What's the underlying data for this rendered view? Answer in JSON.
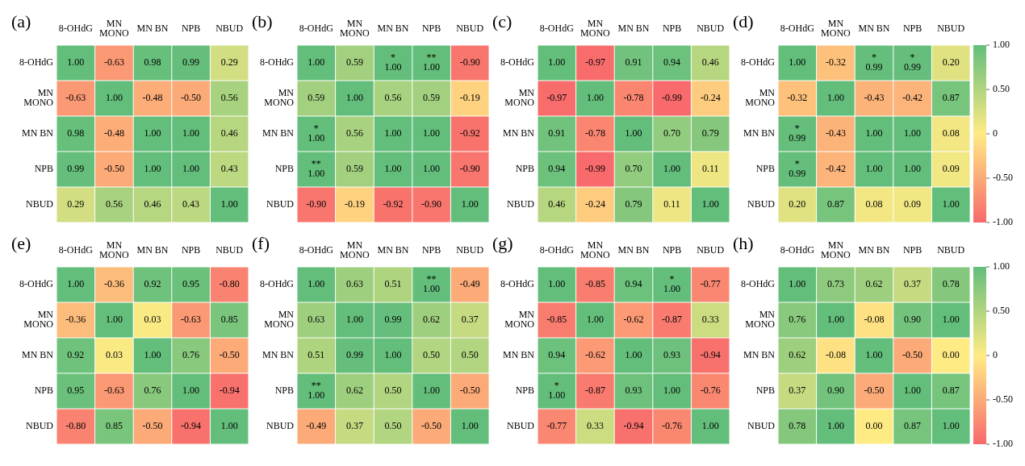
{
  "chart_data": [
    {
      "type": "heatmap",
      "title": "(a)",
      "categories": [
        "8-OHdG",
        "MN\nMONO",
        "MN BN",
        "NPB",
        "NBUD"
      ],
      "y_categories": [
        "8-OHdG",
        "MN\nMONO",
        "MN BN",
        "NPB",
        "NBUD"
      ],
      "cells": [
        [
          1.0,
          -0.63,
          0.98,
          0.99,
          0.29
        ],
        [
          -0.63,
          1.0,
          -0.48,
          -0.5,
          0.56
        ],
        [
          0.98,
          -0.48,
          1.0,
          1.0,
          0.46
        ],
        [
          0.99,
          -0.5,
          1.0,
          1.0,
          0.43
        ],
        [
          0.29,
          0.56,
          0.46,
          0.43,
          1.0
        ]
      ],
      "cell_labels": [
        [
          "1.00",
          "-0.63",
          "0.98",
          "0.99",
          "0.29"
        ],
        [
          "-0.63",
          "1.00",
          "-0.48",
          "-0.50",
          "0.56"
        ],
        [
          "0.98",
          "-0.48",
          "1.00",
          "1.00",
          "0.46"
        ],
        [
          "0.99",
          "-0.50",
          "1.00",
          "1.00",
          "0.43"
        ],
        [
          "0.29",
          "0.56",
          "0.46",
          "0.43",
          "1.00"
        ]
      ]
    },
    {
      "type": "heatmap",
      "title": "(b)",
      "categories": [
        "8-OHdG",
        "MN\nMONO",
        "MN BN",
        "NPB",
        "NBUD"
      ],
      "y_categories": [
        "8-OHdG",
        "MN\nMONO",
        "MN BN",
        "NPB",
        "NBUD"
      ],
      "cells": [
        [
          1.0,
          0.59,
          1.0,
          1.0,
          -0.9
        ],
        [
          0.59,
          1.0,
          0.56,
          0.59,
          -0.19
        ],
        [
          1.0,
          0.56,
          1.0,
          1.0,
          -0.92
        ],
        [
          1.0,
          0.59,
          1.0,
          1.0,
          -0.9
        ],
        [
          -0.9,
          -0.19,
          -0.92,
          -0.9,
          1.0
        ]
      ],
      "cell_labels": [
        [
          "1.00",
          "0.59",
          "*\n1.00",
          "**\n1.00",
          "-0.90"
        ],
        [
          "0.59",
          "1.00",
          "0.56",
          "0.59",
          "-0.19"
        ],
        [
          "*\n1.00",
          "0.56",
          "1.00",
          "1.00",
          "-0.92"
        ],
        [
          "**\n1.00",
          "0.59",
          "1.00",
          "1.00",
          "-0.90"
        ],
        [
          "-0.90",
          "-0.19",
          "-0.92",
          "-0.90",
          "1.00"
        ]
      ]
    },
    {
      "type": "heatmap",
      "title": "(c)",
      "categories": [
        "8-OHdG",
        "MN\nMONO",
        "MN BN",
        "NPB",
        "NBUD"
      ],
      "y_categories": [
        "8-OHdG",
        "MN\nMONO",
        "MN BN",
        "NPB",
        "NBUD"
      ],
      "cells": [
        [
          1.0,
          -0.97,
          0.91,
          0.94,
          0.46
        ],
        [
          -0.97,
          1.0,
          -0.78,
          -0.99,
          -0.24
        ],
        [
          0.91,
          -0.78,
          1.0,
          0.7,
          0.79
        ],
        [
          0.94,
          -0.99,
          0.7,
          1.0,
          0.11
        ],
        [
          0.46,
          -0.24,
          0.79,
          0.11,
          1.0
        ]
      ],
      "cell_labels": [
        [
          "1.00",
          "-0.97",
          "0.91",
          "0.94",
          "0.46"
        ],
        [
          "-0.97",
          "1.00",
          "-0.78",
          "-0.99",
          "-0.24"
        ],
        [
          "0.91",
          "-0.78",
          "1.00",
          "0.70",
          "0.79"
        ],
        [
          "0.94",
          "-0.99",
          "0.70",
          "1.00",
          "0.11"
        ],
        [
          "0.46",
          "-0.24",
          "0.79",
          "0.11",
          "1.00"
        ]
      ]
    },
    {
      "type": "heatmap",
      "title": "(d)",
      "categories": [
        "8-OHdG",
        "MN\nMONO",
        "MN BN",
        "NPB",
        "NBUD"
      ],
      "y_categories": [
        "8-OHdG",
        "MN\nMONO",
        "MN BN",
        "NPB",
        "NBUD"
      ],
      "cells": [
        [
          1.0,
          -0.32,
          0.99,
          0.99,
          0.2
        ],
        [
          -0.32,
          1.0,
          -0.43,
          -0.42,
          0.87
        ],
        [
          0.99,
          -0.43,
          1.0,
          1.0,
          0.08
        ],
        [
          0.99,
          -0.42,
          1.0,
          1.0,
          0.09
        ],
        [
          0.2,
          0.87,
          0.08,
          0.09,
          1.0
        ]
      ],
      "cell_labels": [
        [
          "1.00",
          "-0.32",
          "*\n0.99",
          "*\n0.99",
          "0.20"
        ],
        [
          "-0.32",
          "1.00",
          "-0.43",
          "-0.42",
          "0.87"
        ],
        [
          "*\n0.99",
          "-0.43",
          "1.00",
          "1.00",
          "0.08"
        ],
        [
          "*\n0.99",
          "-0.42",
          "1.00",
          "1.00",
          "0.09"
        ],
        [
          "0.20",
          "0.87",
          "0.08",
          "0.09",
          "1.00"
        ]
      ],
      "clim": [
        -1,
        1
      ],
      "cticks": [
        {
          "value": 1,
          "label": "1.00"
        },
        {
          "value": 0.5,
          "label": "0.50"
        },
        0,
        {
          "value": -0.5,
          "label": "-0.50"
        },
        {
          "value": -1,
          "label": "-1.00"
        }
      ]
    },
    {
      "type": "heatmap",
      "title": "(e)",
      "categories": [
        "8-OHdG",
        "MN\nMONO",
        "MN BN",
        "NPB",
        "NBUD"
      ],
      "y_categories": [
        "8-OHdG",
        "MN\nMONO",
        "MN BN",
        "NPB",
        "NBUD"
      ],
      "cells": [
        [
          1.0,
          -0.36,
          0.92,
          0.95,
          -0.8
        ],
        [
          -0.36,
          1.0,
          0.03,
          -0.63,
          0.85
        ],
        [
          0.92,
          0.03,
          1.0,
          0.76,
          -0.5
        ],
        [
          0.95,
          -0.63,
          0.76,
          1.0,
          -0.94
        ],
        [
          -0.8,
          0.85,
          -0.5,
          -0.94,
          1.0
        ]
      ],
      "cell_labels": [
        [
          "1.00",
          "-0.36",
          "0.92",
          "0.95",
          "-0.80"
        ],
        [
          "-0.36",
          "1.00",
          "0.03",
          "-0.63",
          "0.85"
        ],
        [
          "0.92",
          "0.03",
          "1.00",
          "0.76",
          "-0.50"
        ],
        [
          "0.95",
          "-0.63",
          "0.76",
          "1.00",
          "-0.94"
        ],
        [
          "-0.80",
          "0.85",
          "-0.50",
          "-0.94",
          "1.00"
        ]
      ]
    },
    {
      "type": "heatmap",
      "title": "(f)",
      "categories": [
        "8-OHdG",
        "MN\nMONO",
        "MN BN",
        "NPB",
        "NBUD"
      ],
      "y_categories": [
        "8-OHdG",
        "MN\nMONO",
        "MN BN",
        "NPB",
        "NBUD"
      ],
      "cells": [
        [
          1.0,
          0.63,
          0.51,
          1.0,
          -0.49
        ],
        [
          0.63,
          1.0,
          0.99,
          0.62,
          0.37
        ],
        [
          0.51,
          0.99,
          1.0,
          0.5,
          0.5
        ],
        [
          1.0,
          0.62,
          0.5,
          1.0,
          -0.5
        ],
        [
          -0.49,
          0.37,
          0.5,
          -0.5,
          1.0
        ]
      ],
      "cell_labels": [
        [
          "1.00",
          "0.63",
          "0.51",
          "**\n1.00",
          "-0.49"
        ],
        [
          "0.63",
          "1.00",
          "0.99",
          "0.62",
          "0.37"
        ],
        [
          "0.51",
          "0.99",
          "1.00",
          "0.50",
          "0.50"
        ],
        [
          "**\n1.00",
          "0.62",
          "0.50",
          "1.00",
          "-0.50"
        ],
        [
          "-0.49",
          "0.37",
          "0.50",
          "-0.50",
          "1.00"
        ]
      ]
    },
    {
      "type": "heatmap",
      "title": "(g)",
      "categories": [
        "8-OHdG",
        "MN\nMONO",
        "MN BN",
        "NPB",
        "NBUD"
      ],
      "y_categories": [
        "8-OHdG",
        "MN\nMONO",
        "MN BN",
        "NPB",
        "NBUD"
      ],
      "cells": [
        [
          1.0,
          -0.85,
          0.94,
          1.0,
          -0.77
        ],
        [
          -0.85,
          1.0,
          -0.62,
          -0.87,
          0.33
        ],
        [
          0.94,
          -0.62,
          1.0,
          0.93,
          -0.94
        ],
        [
          1.0,
          -0.87,
          0.93,
          1.0,
          -0.76
        ],
        [
          -0.77,
          0.33,
          -0.94,
          -0.76,
          1.0
        ]
      ],
      "cell_labels": [
        [
          "1.00",
          "-0.85",
          "0.94",
          "*\n1.00",
          "-0.77"
        ],
        [
          "-0.85",
          "1.00",
          "-0.62",
          "-0.87",
          "0.33"
        ],
        [
          "0.94",
          "-0.62",
          "1.00",
          "0.93",
          "-0.94"
        ],
        [
          "*\n1.00",
          "-0.87",
          "0.93",
          "1.00",
          "-0.76"
        ],
        [
          "-0.77",
          "0.33",
          "-0.94",
          "-0.76",
          "1.00"
        ]
      ]
    },
    {
      "type": "heatmap",
      "title": "(h)",
      "categories": [
        "8-OHdG",
        "MN\nMONO",
        "MN BN",
        "NPB",
        "NBUD"
      ],
      "y_categories": [
        "8-OHdG",
        "MN\nMONO",
        "MN BN",
        "NPB",
        "NBUD"
      ],
      "cells": [
        [
          1.0,
          0.73,
          0.62,
          0.37,
          0.78
        ],
        [
          0.76,
          1.0,
          -0.08,
          0.9,
          1.0
        ],
        [
          0.62,
          -0.08,
          1.0,
          -0.5,
          0.0
        ],
        [
          0.37,
          0.9,
          -0.5,
          1.0,
          0.87
        ],
        [
          0.78,
          1.0,
          0.0,
          0.87,
          1.0
        ]
      ],
      "cell_labels": [
        [
          "1.00",
          "0.73",
          "0.62",
          "0.37",
          "0.78"
        ],
        [
          "0.76",
          "1.00",
          "-0.08",
          "0.90",
          "1.00"
        ],
        [
          "0.62",
          "-0.08",
          "1.00",
          "-0.50",
          "0.00"
        ],
        [
          "0.37",
          "0.90",
          "-0.50",
          "1.00",
          "0.87"
        ],
        [
          "0.78",
          "1.00",
          "0.00",
          "0.87",
          "1.00"
        ]
      ],
      "clim": [
        -1,
        1
      ],
      "cticks": [
        {
          "value": 1,
          "label": "1.00"
        },
        {
          "value": 0.5,
          "label": "0.50"
        },
        0,
        {
          "value": -0.5,
          "label": "-0.50"
        },
        {
          "value": -1,
          "label": "-1.00"
        }
      ]
    }
  ]
}
